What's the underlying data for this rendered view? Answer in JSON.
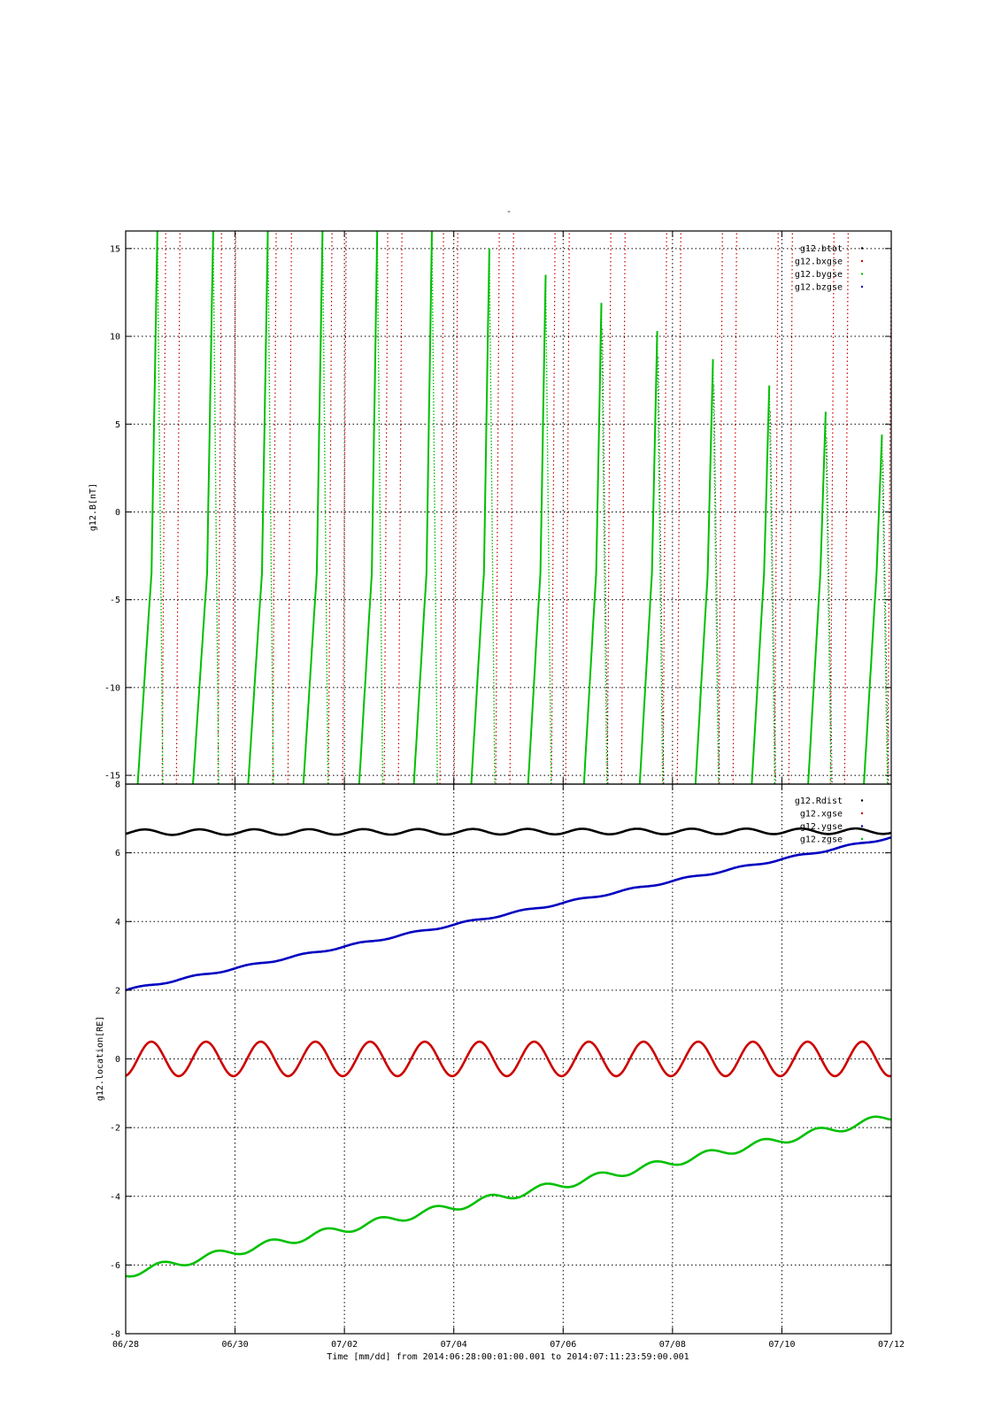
{
  "page_title": "-",
  "x_axis": {
    "tick_labels": [
      "06/28",
      "06/30",
      "07/02",
      "07/04",
      "07/06",
      "07/08",
      "07/10",
      "07/12"
    ],
    "label": "Time [mm/dd]  from 2014:06:28:00:01:00.001  to  2014:07:11:23:59:00.001"
  },
  "colors": {
    "black": "#000000",
    "red": "#cc0000",
    "green": "#00c000",
    "blue": "#0000c0",
    "grid": "#000000"
  },
  "chart_data": [
    {
      "type": "line",
      "ylabel": "g12.B[nT]",
      "ylim": [
        -15.5,
        16
      ],
      "xlim_days": [
        0,
        14
      ],
      "y_ticks": [
        15,
        10,
        5,
        0,
        -5,
        -10,
        -15
      ],
      "grid": true,
      "legend_position": "top-right",
      "legend": [
        {
          "name": "g12.btot",
          "color": "#000000",
          "style": "dots"
        },
        {
          "name": "g12.bxgse",
          "color": "#cc0000",
          "style": "dots"
        },
        {
          "name": "g12.bygse",
          "color": "#00c000",
          "style": "dots"
        },
        {
          "name": "g12.bzgse",
          "color": "#0000c0",
          "style": "dots"
        }
      ],
      "bygse_peaks_nT": [
        16,
        16,
        16,
        16,
        16,
        16,
        15,
        13.5,
        11.9,
        10.3,
        8.7,
        7.2,
        5.7,
        4.4
      ],
      "bygse_peak_days": [
        0.58,
        1.6,
        2.6,
        3.6,
        4.6,
        5.6,
        6.65,
        7.68,
        8.7,
        9.72,
        10.74,
        11.77,
        12.8,
        13.83
      ],
      "bygse_rise_start_days": [
        0.22,
        1.23,
        2.24,
        3.25,
        4.27,
        5.27,
        6.32,
        7.36,
        8.38,
        9.4,
        10.42,
        11.45,
        12.48,
        13.5
      ],
      "bxgse_crossing_days": [
        0.7,
        0.96,
        1.72,
        1.98,
        2.72,
        3.0,
        3.74,
        4.0,
        4.76,
        5.02,
        5.78,
        6.04,
        6.8,
        7.06,
        7.82,
        8.08,
        8.84,
        9.1,
        9.86,
        10.12,
        10.88,
        11.14,
        11.9,
        12.16,
        12.92,
        13.18,
        13.97
      ]
    },
    {
      "type": "line",
      "ylabel": "g12.location[RE]",
      "ylim": [
        -8,
        8
      ],
      "xlim_days": [
        0,
        14
      ],
      "y_ticks": [
        8,
        6,
        4,
        2,
        0,
        -2,
        -4,
        -6,
        -8
      ],
      "grid": true,
      "legend_position": "top-right",
      "series": [
        {
          "name": "g12.Rdist",
          "color": "#000000",
          "start": 6.6,
          "end": 6.63,
          "wiggle": 0.08
        },
        {
          "name": "g12.xgse",
          "color": "#cc0000",
          "start": 0.0,
          "end": 0.0,
          "wiggle": 0.5
        },
        {
          "name": "g12.ygse",
          "color": "#0000c0",
          "start": 2.0,
          "end": 6.45,
          "wiggle": 0.03
        },
        {
          "name": "g12.zgse",
          "color": "#00c000",
          "start": -6.25,
          "end": -1.7,
          "wiggle": 0.12
        }
      ]
    }
  ]
}
